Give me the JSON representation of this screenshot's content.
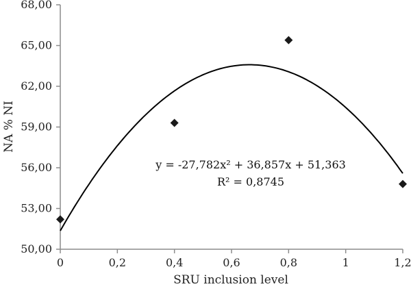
{
  "chart_data": {
    "type": "scatter",
    "title": "",
    "xlabel": "SRU inclusion level",
    "ylabel": "NA % NI",
    "xlim": [
      0,
      1.2
    ],
    "ylim": [
      50,
      68
    ],
    "x_ticks": [
      "0",
      "0,2",
      "0,4",
      "0,6",
      "0,8",
      "1",
      "1,2"
    ],
    "y_ticks": [
      "50,00",
      "53,00",
      "56,00",
      "59,00",
      "62,00",
      "65,00",
      "68,00"
    ],
    "grid": false,
    "legend": null,
    "series": [
      {
        "name": "NA % NI",
        "marker": "diamond",
        "x": [
          0,
          0.4,
          0.8,
          1.2
        ],
        "y": [
          52.2,
          59.3,
          65.4,
          54.8
        ]
      }
    ],
    "trendline": {
      "type": "polynomial",
      "order": 2,
      "coefficients": [
        -27.782,
        36.857,
        51.363
      ],
      "equation": "y = -27,782x² + 36,857x + 51,363",
      "r_squared": "R² = 0,8745"
    },
    "colors": {
      "marker": "#1a1a1a",
      "axis": "#8c8c8c",
      "line": "#000000"
    }
  }
}
